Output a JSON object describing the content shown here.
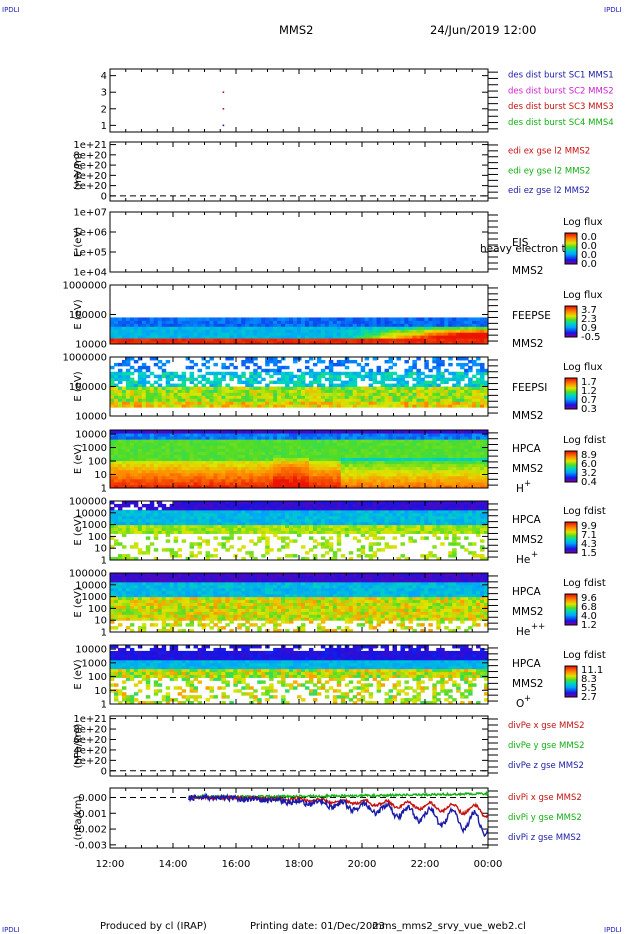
{
  "header": {
    "corner_label": "IPDLI",
    "spacecraft": "MMS2",
    "datetime": "24/Jun/2019 12:00"
  },
  "footer": {
    "produced_by": "Produced by cl (IRAP)",
    "printing_date": "Printing date: 01/Dec/2023",
    "script_name": "mms_mms2_srvy_vue_web2.cl"
  },
  "time_axis": {
    "ticks": [
      "12:00",
      "14:00",
      "16:00",
      "18:00",
      "20:00",
      "22:00",
      "00:00"
    ],
    "start_hour": 12,
    "end_hour": 24
  },
  "panels": [
    {
      "id": "burst",
      "type": "scatter",
      "ylabel": "",
      "yticks": [
        "1",
        "2",
        "3",
        "4"
      ],
      "ylim": [
        0.6,
        4.4
      ],
      "legend": [
        {
          "label": "des dist burst SC1 MMS1",
          "color": "#1a1aa8"
        },
        {
          "label": "des dist burst SC2 MMS2",
          "color": "#d020d0"
        },
        {
          "label": "des dist burst SC3 MMS3",
          "color": "#c81010"
        },
        {
          "label": "des dist burst SC4 MMS4",
          "color": "#10b010"
        }
      ],
      "points": [
        {
          "t": 15.6,
          "y": 1,
          "color": "#1a1aa8"
        },
        {
          "t": 15.6,
          "y": 2,
          "color": "#c81010"
        },
        {
          "t": 15.6,
          "y": 3,
          "color": "#c81010"
        }
      ]
    },
    {
      "id": "edi",
      "type": "line",
      "ylabel": "(mV/m)",
      "yticks": [
        "0",
        "2e+20",
        "4e+20",
        "6e+20",
        "8e+20",
        "1e+21"
      ],
      "ylim": [
        -0.1,
        1.05
      ],
      "zero_line": 0,
      "legend": [
        {
          "label": "edi ex gse l2 MMS2",
          "color": "#c81010"
        },
        {
          "label": "edi ey gse l2 MMS2",
          "color": "#10b010"
        },
        {
          "label": "edi ez gse l2 MMS2",
          "color": "#1a1aa8"
        }
      ]
    },
    {
      "id": "eis",
      "type": "spectrogram",
      "ylabel": "E (eV)",
      "yticks": [
        "1e+04",
        "1e+05",
        "1e+06",
        "1e+07"
      ],
      "ylim": [
        4,
        7
      ],
      "instrument": "EIS",
      "spacecraft": "MMS2",
      "overlay_text": "heavy electron tof",
      "colorbar": {
        "title": "Log flux",
        "ticks": [
          "0.0",
          "0.0",
          "0.0",
          "0.0"
        ]
      },
      "data_start": null
    },
    {
      "id": "feepse",
      "type": "spectrogram",
      "ylabel": "E (eV)",
      "yticks": [
        "10000",
        "100000",
        "1000000"
      ],
      "ylim": [
        4,
        6
      ],
      "instrument": "FEEPSE",
      "spacecraft": "MMS2",
      "colorbar": {
        "title": "Log flux",
        "ticks": [
          "3.7",
          "2.3",
          "0.9",
          "-0.5"
        ]
      },
      "data_start": 12
    },
    {
      "id": "feepsi",
      "type": "spectrogram",
      "ylabel": "E (eV)",
      "yticks": [
        "10000",
        "100000",
        "1000000"
      ],
      "ylim": [
        4,
        6
      ],
      "instrument": "FEEPSI",
      "spacecraft": "MMS2",
      "colorbar": {
        "title": "Log flux",
        "ticks": [
          "1.7",
          "1.2",
          "0.7",
          "0.3"
        ]
      },
      "data_start": 12
    },
    {
      "id": "hpca_h",
      "type": "spectrogram",
      "ylabel": "E (eV)",
      "yticks": [
        "1",
        "10",
        "100",
        "1000",
        "10000"
      ],
      "ylim": [
        0,
        4.3
      ],
      "instrument": "HPCA",
      "spacecraft": "MMS2",
      "species": "H",
      "species_sup": "+",
      "colorbar": {
        "title": "Log fdist",
        "ticks": [
          "8.9",
          "6.0",
          "3.2",
          "0.4"
        ]
      },
      "data_start": 12
    },
    {
      "id": "hpca_he",
      "type": "spectrogram",
      "ylabel": "E (eV)",
      "yticks": [
        "1",
        "10",
        "100",
        "1000",
        "10000",
        "100000"
      ],
      "ylim": [
        0,
        5
      ],
      "instrument": "HPCA",
      "spacecraft": "MMS2",
      "species": "He",
      "species_sup": "+",
      "colorbar": {
        "title": "Log fdist",
        "ticks": [
          "9.9",
          "7.1",
          "4.3",
          "1.5"
        ]
      },
      "data_start": 12
    },
    {
      "id": "hpca_hepp",
      "type": "spectrogram",
      "ylabel": "E (eV)",
      "yticks": [
        "1",
        "10",
        "100",
        "1000",
        "10000",
        "100000"
      ],
      "ylim": [
        0,
        5
      ],
      "instrument": "HPCA",
      "spacecraft": "MMS2",
      "species": "He",
      "species_sup": "++",
      "colorbar": {
        "title": "Log fdist",
        "ticks": [
          "9.6",
          "6.8",
          "4.0",
          "1.2"
        ]
      },
      "data_start": 12
    },
    {
      "id": "hpca_o",
      "type": "spectrogram",
      "ylabel": "E (eV)",
      "yticks": [
        "1",
        "10",
        "100",
        "1000",
        "10000"
      ],
      "ylim": [
        0,
        4.3
      ],
      "instrument": "HPCA",
      "spacecraft": "MMS2",
      "species": "O",
      "species_sup": "+",
      "colorbar": {
        "title": "Log fdist",
        "ticks": [
          "11.1",
          "8.3",
          "5.5",
          "2.7"
        ]
      },
      "data_start": 12
    },
    {
      "id": "divpe",
      "type": "line",
      "ylabel": "(nPa/km)",
      "yticks": [
        "0",
        "2e+20",
        "4e+20",
        "6e+20",
        "8e+20",
        "1e+21"
      ],
      "ylim": [
        -0.1,
        1.05
      ],
      "zero_line": 0,
      "legend": [
        {
          "label": "divPe x gse MMS2",
          "color": "#c81010"
        },
        {
          "label": "divPe y gse MMS2",
          "color": "#10b010"
        },
        {
          "label": "divPe z gse MMS2",
          "color": "#1a1aa8"
        }
      ]
    },
    {
      "id": "divpi",
      "type": "line",
      "ylabel": "(nPa/km)",
      "yticks": [
        "-0.003",
        "-0.002",
        "-0.001",
        "0.000"
      ],
      "ylim": [
        -0.0032,
        0.0006
      ],
      "zero_line": 0,
      "data_start": 14.5,
      "legend": [
        {
          "label": "divPi x gse MMS2",
          "color": "#c81010"
        },
        {
          "label": "divPi y gse MMS2",
          "color": "#10b010"
        },
        {
          "label": "divPi z gse MMS2",
          "color": "#1a1aa8"
        }
      ]
    }
  ]
}
